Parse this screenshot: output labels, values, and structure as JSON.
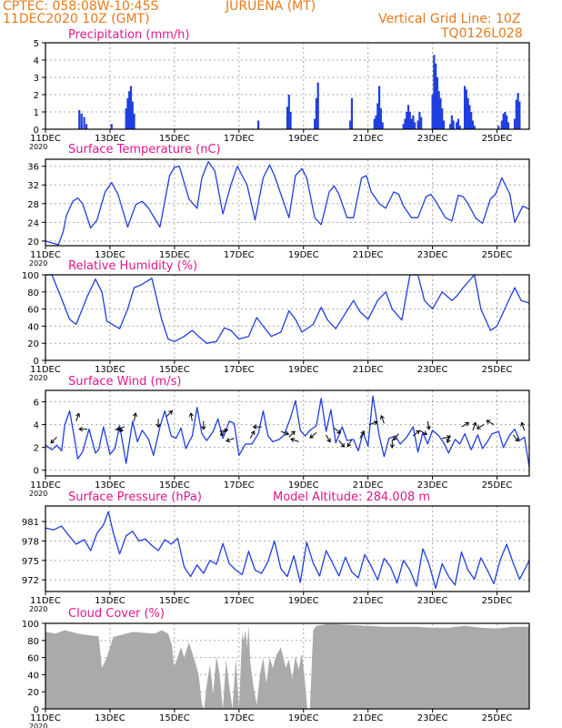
{
  "header": {
    "source_coords": "CPTEC:   058:08W-10:45S",
    "station": "JURUENA (MT)",
    "init_time": "11DEC2020 10Z (GMT)",
    "grid_note": "Vertical Grid Line: 10Z",
    "model_code": "TQ0126L028"
  },
  "colors": {
    "header_text": "#e87a1c",
    "title_text": "#e0178a",
    "series": "#1f3fe0",
    "cloud_fill": "#aaaaaa",
    "grid": "#aaaaaa",
    "arrow": "#000000"
  },
  "x_tick_labels": [
    "11DEC",
    "13DEC",
    "15DEC",
    "17DEC",
    "19DEC",
    "21DEC",
    "23DEC",
    "25DEC"
  ],
  "x_tick_days": [
    0,
    2,
    4,
    6,
    8,
    10,
    12,
    14
  ],
  "year_label": "2020",
  "chart_data": [
    {
      "id": "precip",
      "type": "bar",
      "title": "Precipitation (mm/h)",
      "ylim": [
        0,
        5
      ],
      "yticks": [
        0,
        1,
        2,
        3,
        4,
        5
      ],
      "grid": true,
      "x_days": [
        1.05,
        1.12,
        1.2,
        1.27,
        2.05,
        2.5,
        2.55,
        2.6,
        2.65,
        2.7,
        2.75,
        6.6,
        7.5,
        7.55,
        7.6,
        8.35,
        8.4,
        8.45,
        9.45,
        9.5,
        10.2,
        10.25,
        10.3,
        10.35,
        10.4,
        10.45,
        11.1,
        11.15,
        11.2,
        11.25,
        11.3,
        11.35,
        11.4,
        11.45,
        11.55,
        11.6,
        11.65,
        12.0,
        12.05,
        12.1,
        12.15,
        12.2,
        12.25,
        12.3,
        12.35,
        12.55,
        12.6,
        12.65,
        12.75,
        12.8,
        12.85,
        13.0,
        13.05,
        13.1,
        13.15,
        13.2,
        13.25,
        13.3,
        14.05,
        14.15,
        14.2,
        14.25,
        14.3,
        14.35,
        14.55,
        14.6,
        14.65,
        14.7
      ],
      "values": [
        1.1,
        0.9,
        0.7,
        0.3,
        0.3,
        1.2,
        1.8,
        2.2,
        2.5,
        1.6,
        0.9,
        0.5,
        1.3,
        2.0,
        1.0,
        0.6,
        1.8,
        2.7,
        0.5,
        1.8,
        0.6,
        0.8,
        1.5,
        2.5,
        1.2,
        0.4,
        0.3,
        0.6,
        1.0,
        1.4,
        1.0,
        0.6,
        0.8,
        0.4,
        0.5,
        1.0,
        0.7,
        2.0,
        4.3,
        3.8,
        3.0,
        2.2,
        1.8,
        1.2,
        0.5,
        0.3,
        0.8,
        0.5,
        0.4,
        0.6,
        0.2,
        2.5,
        2.3,
        1.8,
        1.4,
        1.0,
        0.5,
        0.2,
        0.2,
        0.5,
        0.9,
        1.0,
        0.8,
        0.4,
        0.6,
        1.7,
        2.1,
        1.6
      ]
    },
    {
      "id": "temp",
      "type": "line",
      "title": "Surface Temperature (nC)",
      "ylim": [
        19,
        37.5
      ],
      "yticks": [
        20,
        24,
        28,
        32,
        36
      ],
      "grid": true,
      "x_days": [
        0.0,
        0.4,
        0.55,
        0.65,
        0.85,
        1.0,
        1.15,
        1.4,
        1.6,
        1.85,
        2.05,
        2.25,
        2.55,
        2.8,
        3.0,
        3.2,
        3.55,
        3.85,
        4.0,
        4.15,
        4.45,
        4.7,
        4.85,
        5.05,
        5.25,
        5.5,
        5.75,
        5.95,
        6.1,
        6.25,
        6.5,
        6.75,
        6.95,
        7.1,
        7.3,
        7.55,
        7.75,
        7.95,
        8.1,
        8.35,
        8.55,
        8.8,
        8.95,
        9.1,
        9.35,
        9.55,
        9.8,
        9.95,
        10.1,
        10.35,
        10.55,
        10.8,
        10.95,
        11.1,
        11.35,
        11.55,
        11.8,
        11.95,
        12.1,
        12.4,
        12.6,
        12.8,
        12.95,
        13.1,
        13.35,
        13.55,
        13.8,
        13.95,
        14.15,
        14.4,
        14.55,
        14.8,
        15.0
      ],
      "values": [
        20,
        19.2,
        22,
        25.5,
        28.5,
        29.2,
        28,
        22.8,
        24.5,
        30.5,
        32.5,
        30,
        23,
        27.8,
        28.5,
        27,
        23,
        34,
        35.8,
        36,
        29,
        27,
        33.5,
        37,
        35,
        25.8,
        32,
        36,
        34,
        32,
        24.5,
        33.5,
        36.3,
        34,
        30,
        25,
        34,
        35.5,
        33.5,
        25,
        23.5,
        30.5,
        31.8,
        30,
        25,
        25,
        33.5,
        34,
        30.5,
        28,
        27,
        30.5,
        30,
        27.5,
        25,
        25,
        29.5,
        30,
        28.5,
        25,
        24.3,
        29.8,
        29.5,
        28,
        24.8,
        23.8,
        29,
        30,
        33.5,
        30,
        24,
        27.5,
        26.8
      ]
    },
    {
      "id": "rh",
      "type": "line",
      "title": "Relative Humidity (%)",
      "ylim": [
        0,
        100
      ],
      "yticks": [
        0,
        20,
        40,
        60,
        80,
        100
      ],
      "grid": true,
      "x_days": [
        0.0,
        0.2,
        0.5,
        0.75,
        0.95,
        1.3,
        1.55,
        1.75,
        1.9,
        2.3,
        2.55,
        2.75,
        2.95,
        3.3,
        3.6,
        3.8,
        4.0,
        4.3,
        4.55,
        4.75,
        5.0,
        5.3,
        5.55,
        5.75,
        6.0,
        6.3,
        6.55,
        6.75,
        7.0,
        7.3,
        7.55,
        7.75,
        7.95,
        8.3,
        8.55,
        8.75,
        9.0,
        9.3,
        9.55,
        9.75,
        10.0,
        10.3,
        10.55,
        10.75,
        11.05,
        11.3,
        11.55,
        11.75,
        12.0,
        12.3,
        12.6,
        12.75,
        12.95,
        13.3,
        13.5,
        13.8,
        14.0,
        14.3,
        14.55,
        14.75,
        15.0
      ],
      "values": [
        100,
        100,
        72,
        48,
        42,
        75,
        95,
        80,
        46,
        37,
        60,
        85,
        88,
        96,
        48,
        25,
        22,
        28,
        35,
        28,
        20,
        22,
        38,
        35,
        25,
        28,
        50,
        40,
        28,
        33,
        58,
        48,
        33,
        42,
        62,
        47,
        37,
        55,
        70,
        57,
        48,
        70,
        80,
        60,
        47,
        100,
        100,
        70,
        60,
        80,
        70,
        75,
        85,
        100,
        60,
        35,
        40,
        65,
        85,
        70,
        67
      ]
    },
    {
      "id": "wind",
      "type": "line",
      "title": "Surface Wind (m/s)",
      "ylim": [
        -0.5,
        7.0
      ],
      "yticks": [
        0,
        2,
        4,
        6
      ],
      "grid": true,
      "x_days": [
        0.0,
        0.2,
        0.35,
        0.5,
        0.6,
        0.75,
        0.9,
        1.0,
        1.15,
        1.35,
        1.55,
        1.65,
        1.8,
        2.0,
        2.15,
        2.3,
        2.5,
        2.7,
        2.85,
        3.0,
        3.2,
        3.35,
        3.55,
        3.7,
        3.9,
        4.05,
        4.2,
        4.35,
        4.55,
        4.7,
        4.85,
        5.0,
        5.2,
        5.35,
        5.5,
        5.7,
        5.85,
        6.0,
        6.2,
        6.4,
        6.6,
        6.75,
        6.9,
        7.05,
        7.25,
        7.4,
        7.6,
        7.75,
        7.9,
        8.05,
        8.2,
        8.4,
        8.55,
        8.7,
        8.85,
        9.0,
        9.2,
        9.35,
        9.55,
        9.7,
        9.85,
        10.0,
        10.15,
        10.35,
        10.5,
        10.65,
        10.85,
        11.0,
        11.2,
        11.4,
        11.55,
        11.7,
        11.85,
        12.0,
        12.2,
        12.35,
        12.5,
        12.7,
        12.85,
        13.0,
        13.2,
        13.4,
        13.55,
        13.7,
        13.85,
        14.05,
        14.2,
        14.4,
        14.55,
        14.7,
        14.85,
        15.0
      ],
      "values": [
        2.2,
        1.8,
        2.2,
        1.7,
        4.0,
        5.2,
        2.8,
        1.0,
        1.6,
        3.6,
        1.5,
        1.8,
        3.8,
        1.4,
        1.9,
        3.9,
        0.6,
        4.3,
        2.5,
        3.5,
        2.7,
        1.3,
        3.8,
        5.2,
        3.0,
        2.8,
        3.7,
        1.9,
        3.0,
        5.5,
        3.2,
        2.6,
        3.4,
        4.5,
        2.8,
        4.3,
        4.1,
        1.3,
        2.3,
        2.3,
        3.2,
        5.2,
        3.0,
        2.5,
        2.7,
        3.1,
        4.6,
        6.1,
        3.5,
        3.0,
        3.5,
        3.9,
        6.3,
        3.4,
        5.3,
        2.4,
        3.8,
        2.6,
        2.7,
        1.7,
        3.3,
        2.1,
        6.5,
        3.0,
        1.2,
        2.8,
        3.0,
        2.3,
        2.9,
        3.8,
        1.6,
        3.3,
        2.3,
        3.5,
        3.0,
        2.4,
        1.5,
        2.7,
        2.3,
        3.2,
        1.8,
        3.1,
        1.9,
        2.5,
        3.2,
        3.4,
        2.0,
        3.1,
        3.6,
        2.6,
        2.9,
        0.3
      ],
      "arrow_days": [
        0.35,
        0.95,
        1.3,
        2.15,
        2.45,
        2.75,
        3.5,
        3.75,
        4.55,
        4.9,
        5.4,
        5.6,
        5.85,
        6.35,
        6.7,
        7.3,
        7.55,
        7.85,
        8.4,
        8.7,
        8.95,
        9.1,
        9.5,
        9.75,
        10.05,
        10.5,
        10.75,
        10.95,
        11.4,
        11.6,
        11.85,
        12.3,
        12.55,
        12.9,
        13.25,
        13.6,
        13.9,
        14.5,
        14.85
      ],
      "arrow_speed": [
        2.9,
        4.3,
        3.6,
        3.6,
        3.8,
        4.3,
        4.5,
        4.7,
        4.3,
        4.3,
        3.4,
        3.6,
        2.8,
        2.8,
        3.8,
        3.4,
        2.9,
        2.5,
        3.3,
        3.1,
        3.7,
        2.6,
        2.7,
        2.8,
        4.0,
        4.1,
        2.7,
        3.2,
        3.0,
        3.5,
        4.3,
        2.8,
        3.1,
        3.8,
        3.5,
        4.0,
        4.0,
        3.1,
        3.5
      ],
      "arrow_dir_deg": [
        225,
        70,
        180,
        350,
        200,
        80,
        270,
        45,
        100,
        270,
        10,
        230,
        200,
        60,
        180,
        340,
        45,
        160,
        220,
        300,
        320,
        310,
        240,
        60,
        20,
        110,
        270,
        230,
        40,
        330,
        280,
        10,
        250,
        30,
        70,
        210,
        150,
        310,
        110
      ]
    },
    {
      "id": "pres",
      "type": "line",
      "title": "Surface Pressure (hPa)",
      "subtitle": "Model Altitude: 284.008  m",
      "ylim": [
        970.2,
        983.4
      ],
      "yticks": [
        972,
        975,
        978,
        981
      ],
      "grid": true,
      "x_days": [
        0.0,
        0.25,
        0.5,
        0.7,
        0.95,
        1.2,
        1.4,
        1.6,
        1.8,
        1.95,
        2.1,
        2.3,
        2.5,
        2.7,
        2.9,
        3.1,
        3.3,
        3.5,
        3.7,
        3.9,
        4.1,
        4.3,
        4.5,
        4.7,
        4.9,
        5.1,
        5.3,
        5.5,
        5.7,
        5.9,
        6.1,
        6.3,
        6.5,
        6.7,
        6.9,
        7.1,
        7.3,
        7.5,
        7.7,
        7.9,
        8.1,
        8.3,
        8.5,
        8.7,
        8.9,
        9.1,
        9.3,
        9.5,
        9.7,
        9.9,
        10.1,
        10.3,
        10.5,
        10.7,
        10.9,
        11.1,
        11.3,
        11.5,
        11.7,
        11.9,
        12.1,
        12.3,
        12.5,
        12.7,
        12.9,
        13.1,
        13.3,
        13.5,
        13.7,
        13.9,
        14.1,
        14.3,
        14.5,
        14.7,
        14.9,
        15.0
      ],
      "values": [
        980,
        979.7,
        980.3,
        979,
        977.5,
        978.2,
        976.5,
        979.2,
        980.5,
        982.5,
        979.3,
        976,
        978.8,
        979.5,
        978,
        978.3,
        977.3,
        976.5,
        978.2,
        977.5,
        978.4,
        974,
        972.5,
        974.3,
        973,
        975,
        974.4,
        977.6,
        974.5,
        973.5,
        972.8,
        976.4,
        973.5,
        973,
        974.8,
        978,
        973.7,
        972.5,
        975.7,
        971.6,
        977.8,
        974.6,
        972.6,
        976.5,
        974.6,
        972.6,
        975.5,
        973.2,
        972.3,
        975.9,
        974.1,
        972,
        975.3,
        974,
        971.5,
        975,
        973.5,
        971,
        976.8,
        974.3,
        970.7,
        974.5,
        972.5,
        971.2,
        976.3,
        973.5,
        972.1,
        975.4,
        973.5,
        971.4,
        975.1,
        977.5,
        974.6,
        972.1,
        974,
        975
      ]
    },
    {
      "id": "cloud",
      "type": "area",
      "title": "Cloud Cover (%)",
      "ylim": [
        0,
        100
      ],
      "yticks": [
        0,
        20,
        40,
        60,
        80,
        100
      ],
      "grid": true,
      "x_days": [
        0.0,
        0.3,
        0.6,
        1.0,
        1.4,
        1.65,
        1.75,
        1.9,
        2.1,
        2.4,
        2.7,
        3.0,
        3.4,
        3.6,
        3.8,
        3.92,
        3.98,
        4.05,
        4.2,
        4.3,
        4.45,
        4.6,
        4.75,
        4.85,
        4.92,
        5.0,
        5.1,
        5.2,
        5.3,
        5.4,
        5.5,
        5.6,
        5.7,
        5.8,
        5.9,
        6.0,
        6.1,
        6.15,
        6.2,
        6.25,
        6.3,
        6.35,
        6.45,
        6.55,
        6.65,
        6.75,
        6.85,
        6.95,
        7.05,
        7.15,
        7.3,
        7.45,
        7.55,
        7.65,
        7.75,
        7.85,
        7.95,
        8.05,
        8.12,
        8.2,
        8.3,
        8.4,
        8.55,
        8.7,
        9.0,
        9.5,
        10.0,
        10.5,
        11.0,
        11.5,
        12.0,
        12.5,
        13.0,
        13.5,
        14.0,
        14.5,
        15.0
      ],
      "values": [
        90,
        88,
        92,
        88,
        86,
        85,
        48,
        60,
        84,
        87,
        90,
        89,
        88,
        92,
        88,
        75,
        50,
        55,
        72,
        60,
        78,
        60,
        40,
        5,
        0,
        28,
        52,
        18,
        62,
        40,
        0,
        58,
        26,
        0,
        60,
        0,
        88,
        80,
        92,
        72,
        98,
        55,
        26,
        5,
        40,
        60,
        30,
        60,
        48,
        62,
        72,
        48,
        58,
        35,
        62,
        46,
        65,
        30,
        0,
        0,
        92,
        97,
        98,
        99,
        99,
        98,
        97,
        96,
        96,
        96,
        95,
        95,
        97,
        95,
        94,
        96,
        96
      ]
    }
  ]
}
